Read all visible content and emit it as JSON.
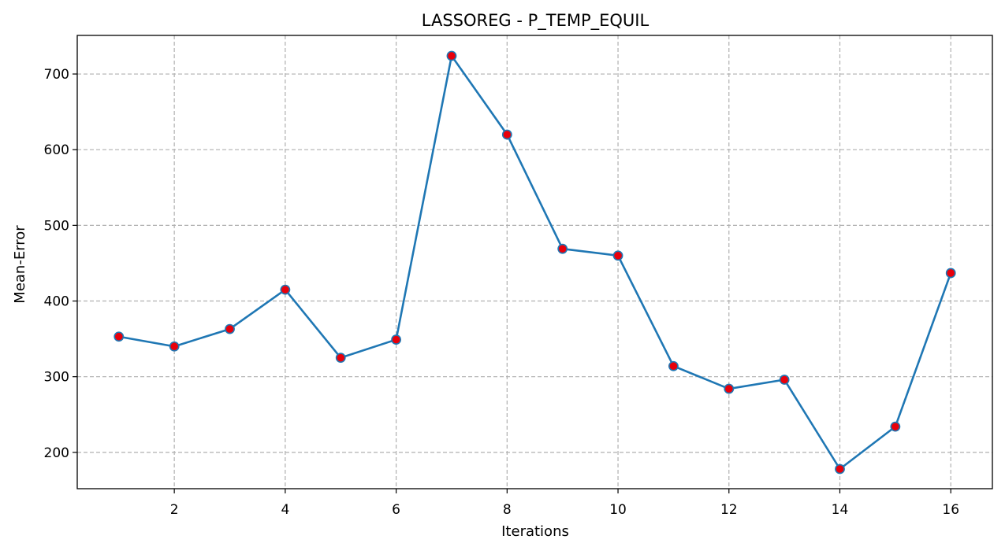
{
  "chart_data": {
    "type": "line",
    "title": "LASSOREG - P_TEMP_EQUIL",
    "xlabel": "Iterations",
    "ylabel": "Mean-Error",
    "x": [
      1,
      2,
      3,
      4,
      5,
      6,
      7,
      8,
      9,
      10,
      11,
      12,
      13,
      14,
      15,
      16
    ],
    "series": [
      {
        "values": [
          353,
          340,
          363,
          415,
          325,
          349,
          724,
          620,
          469,
          460,
          314,
          284,
          296,
          178,
          234,
          437
        ]
      }
    ],
    "xlim": [
      0.25,
      16.75
    ],
    "ylim": [
      152,
      751
    ],
    "xticks": [
      2,
      4,
      6,
      8,
      10,
      12,
      14,
      16
    ],
    "yticks": [
      200,
      300,
      400,
      500,
      600,
      700
    ],
    "grid": true,
    "line_color": "#1f77b4",
    "marker_color": "#e8000b",
    "grid_color": "#b0b0b0"
  }
}
